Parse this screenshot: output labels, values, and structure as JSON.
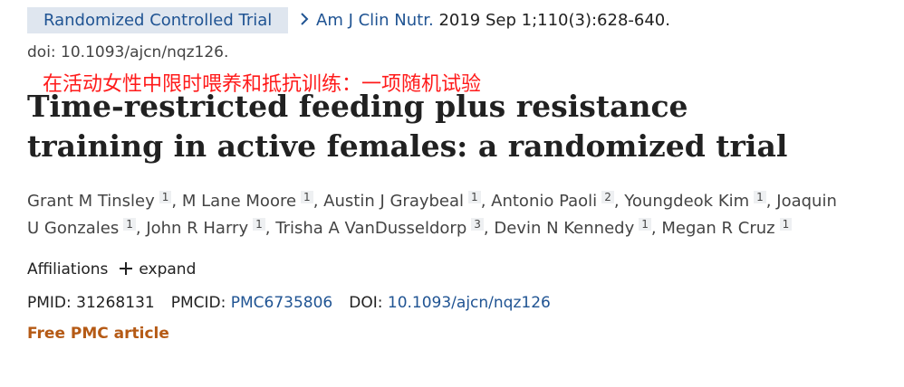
{
  "header": {
    "badge": "Randomized Controlled Trial",
    "journal": "Am J Clin Nutr.",
    "citation": "2019 Sep 1;110(3):628-640.",
    "doi": "doi: 10.1093/ajcn/nqz126."
  },
  "annotation": "在活动女性中限时喂养和抵抗训练：一项随机试验",
  "title": "Time-restricted feeding plus resistance training in active females: a randomized trial",
  "author_separator": ",",
  "authors": [
    {
      "name": "Grant M Tinsley",
      "affiliation": "1"
    },
    {
      "name": "M Lane Moore",
      "affiliation": "1"
    },
    {
      "name": "Austin J Graybeal",
      "affiliation": "1"
    },
    {
      "name": "Antonio Paoli",
      "affiliation": "2"
    },
    {
      "name": "Youngdeok Kim",
      "affiliation": "1"
    },
    {
      "name": "Joaquin U Gonzales",
      "affiliation": "1"
    },
    {
      "name": "John R Harry",
      "affiliation": "1"
    },
    {
      "name": "Trisha A VanDusseldorp",
      "affiliation": "3"
    },
    {
      "name": "Devin N Kennedy",
      "affiliation": "1"
    },
    {
      "name": "Megan R Cruz",
      "affiliation": "1"
    }
  ],
  "affiliations": {
    "label": "Affiliations",
    "action": "expand"
  },
  "identifiers": [
    {
      "label": "PMID:",
      "value": "31268131"
    },
    {
      "label": "PMCID:",
      "value": "PMC6735806"
    },
    {
      "label": "DOI:",
      "value": "10.1093/ajcn/nqz126"
    }
  ],
  "free_article": "Free PMC article"
}
